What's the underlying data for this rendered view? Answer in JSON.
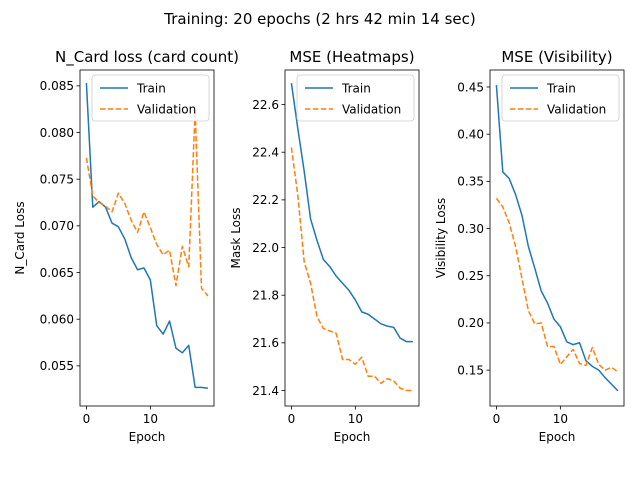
{
  "figure": {
    "suptitle": "Training: 20 epochs (2 hrs 42 min 14 sec)"
  },
  "colors": {
    "train": "#1f77b4",
    "validation": "#ff7f0e"
  },
  "chart_data": [
    {
      "type": "line",
      "title": "N_Card loss (card count)",
      "xlabel": "Epoch",
      "ylabel": "N_Card Loss",
      "xlim": [
        -1,
        19.95
      ],
      "ylim": [
        0.0507,
        0.0867
      ],
      "xticks": [
        0,
        10
      ],
      "yticks": [
        0.055,
        0.06,
        0.065,
        0.07,
        0.075,
        0.08,
        0.085
      ],
      "ytick_labels": [
        "0.055",
        "0.060",
        "0.065",
        "0.070",
        "0.075",
        "0.080",
        "0.085"
      ],
      "legend": "top-right",
      "series": [
        {
          "name": "Train",
          "style": "solid",
          "values": [
            0.0853,
            0.072,
            0.0726,
            0.072,
            0.0703,
            0.0699,
            0.0686,
            0.0666,
            0.0653,
            0.0655,
            0.0642,
            0.0593,
            0.0584,
            0.0598,
            0.0569,
            0.0564,
            0.0572,
            0.0527,
            0.0527,
            0.0526
          ]
        },
        {
          "name": "Validation",
          "style": "dashed",
          "values": [
            0.0773,
            0.0732,
            0.0725,
            0.0721,
            0.0715,
            0.0735,
            0.0724,
            0.0706,
            0.0693,
            0.0715,
            0.0698,
            0.068,
            0.0669,
            0.0674,
            0.0636,
            0.0678,
            0.0656,
            0.0823,
            0.0633,
            0.0625
          ]
        }
      ]
    },
    {
      "type": "line",
      "title": "MSE (Heatmaps)",
      "xlabel": "Epoch",
      "ylabel": "Mask Loss",
      "xlim": [
        -1,
        19.95
      ],
      "ylim": [
        21.335,
        22.745
      ],
      "xticks": [
        0,
        10
      ],
      "yticks": [
        21.4,
        21.6,
        21.8,
        22.0,
        22.2,
        22.4,
        22.6
      ],
      "ytick_labels": [
        "21.4",
        "21.6",
        "21.8",
        "22.0",
        "22.2",
        "22.4",
        "22.6"
      ],
      "legend": "top-right",
      "series": [
        {
          "name": "Train",
          "style": "solid",
          "values": [
            22.69,
            22.5,
            22.32,
            22.12,
            22.03,
            21.95,
            21.92,
            21.88,
            21.85,
            21.82,
            21.78,
            21.73,
            21.72,
            21.7,
            21.68,
            21.67,
            21.665,
            21.62,
            21.605,
            21.605
          ]
        },
        {
          "name": "Validation",
          "style": "dashed",
          "values": [
            22.42,
            22.22,
            21.94,
            21.85,
            21.71,
            21.66,
            21.65,
            21.64,
            21.53,
            21.53,
            21.51,
            21.54,
            21.46,
            21.46,
            21.43,
            21.45,
            21.44,
            21.41,
            21.4,
            21.4
          ]
        }
      ]
    },
    {
      "type": "line",
      "title": "MSE (Visibility)",
      "xlabel": "Epoch",
      "ylabel": "Visibility Loss",
      "xlim": [
        -1,
        19.95
      ],
      "ylim": [
        0.112,
        0.468
      ],
      "xticks": [
        0,
        10
      ],
      "yticks": [
        0.15,
        0.2,
        0.25,
        0.3,
        0.35,
        0.4,
        0.45
      ],
      "ytick_labels": [
        "0.15",
        "0.20",
        "0.25",
        "0.30",
        "0.35",
        "0.40",
        "0.45"
      ],
      "legend": "top-right",
      "series": [
        {
          "name": "Train",
          "style": "solid",
          "values": [
            0.452,
            0.36,
            0.353,
            0.336,
            0.314,
            0.281,
            0.258,
            0.234,
            0.221,
            0.204,
            0.196,
            0.18,
            0.177,
            0.179,
            0.16,
            0.154,
            0.15,
            0.142,
            0.135,
            0.128
          ]
        },
        {
          "name": "Validation",
          "style": "dashed",
          "values": [
            0.332,
            0.323,
            0.306,
            0.281,
            0.247,
            0.213,
            0.199,
            0.2,
            0.175,
            0.175,
            0.156,
            0.164,
            0.172,
            0.157,
            0.155,
            0.174,
            0.156,
            0.15,
            0.153,
            0.148
          ]
        }
      ]
    }
  ]
}
